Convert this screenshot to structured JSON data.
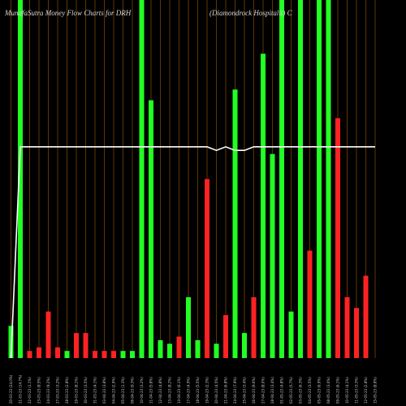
{
  "header": {
    "title_left": "MunafaSutra  Money Flow  Charts for DRH",
    "title_right": "(Diamondrock Hospitalit) C"
  },
  "chart_data": {
    "type": "bar",
    "title": "MunafaSutra Money Flow Charts for DRH",
    "subtitle": "(Diamondrock Hospitalit) C",
    "ylim": [
      0,
      100
    ],
    "grid": "vertical",
    "colors": {
      "up": "#22ff22",
      "down": "#ff2222",
      "line": "#ffffff",
      "grid": "#7a4400",
      "background": "#000000"
    },
    "categories": [
      "20-03-23 (24.0%)",
      "21-03-23 (14.7%)",
      "22-03-23 (1.1%)",
      "23-03-23 (8.5%)",
      "24-03-23 (9.2%)",
      "27-03-23 (3.2%)",
      "28-03-23 (2.8%)",
      "29-03-23 (8.1%)",
      "30-03-23 (3.5%)",
      "31-03-23 (4.1%)",
      "03-04-23 (3.8%)",
      "04-04-23 (2.9%)",
      "05-04-23 (1.3%)",
      "06-04-23 (9.3%)",
      "10-04-23 (3.2%)",
      "11-04-23 (5.8%)",
      "12-04-23 (4.8%)",
      "13-04-23 (8.2%)",
      "14-04-23 (6.1%)",
      "17-04-23 (4.9%)",
      "18-04-23 (5.5%)",
      "19-04-23 (2.3%)",
      "20-04-23 (4.5%)",
      "21-04-23 (6.8%)",
      "24-04-23 (7.9%)",
      "25-04-23 (3.4%)",
      "26-04-23 (9.6%)",
      "27-04-23 (8.0%)",
      "28-04-23 (3.4%)",
      "01-05-23 (4.8%)",
      "02-05-23 (5.7%)",
      "03-05-23 (6.3%)",
      "04-05-23 (3.5%)",
      "05-05-23 (6.9%)",
      "08-05-23 (3.0%)",
      "09-05-23 (6.1%)",
      "10-05-23 (4.1%)",
      "11-05-23 (3.3%)",
      "12-05-23 (2.8%)",
      "15-05-23 (8.8%)"
    ],
    "series": [
      {
        "values": [
          9,
          100,
          2,
          3,
          13,
          3,
          2,
          7,
          7,
          2,
          2,
          2,
          2,
          2,
          100,
          72,
          5,
          4,
          6,
          17,
          5,
          50,
          4,
          12,
          75,
          7,
          17,
          85,
          57,
          100,
          13,
          100,
          30,
          100,
          100,
          67,
          17,
          14,
          23,
          0
        ],
        "directions": [
          "up",
          "up",
          "down",
          "down",
          "down",
          "down",
          "up",
          "down",
          "down",
          "down",
          "down",
          "down",
          "up",
          "up",
          "up",
          "up",
          "up",
          "up",
          "down",
          "up",
          "up",
          "down",
          "up",
          "down",
          "up",
          "up",
          "down",
          "up",
          "up",
          "up",
          "up",
          "up",
          "down",
          "up",
          "up",
          "down",
          "down",
          "down",
          "down",
          "down"
        ]
      },
      {
        "values": [
          0,
          59,
          59,
          59,
          59,
          59,
          59,
          59,
          59,
          59,
          59,
          59,
          59,
          59,
          59,
          59,
          59,
          59,
          59,
          59,
          59,
          59,
          58,
          59,
          58,
          58,
          59,
          59,
          59,
          59,
          59,
          59,
          59,
          59,
          59,
          59,
          59,
          59,
          59,
          59
        ]
      }
    ]
  }
}
